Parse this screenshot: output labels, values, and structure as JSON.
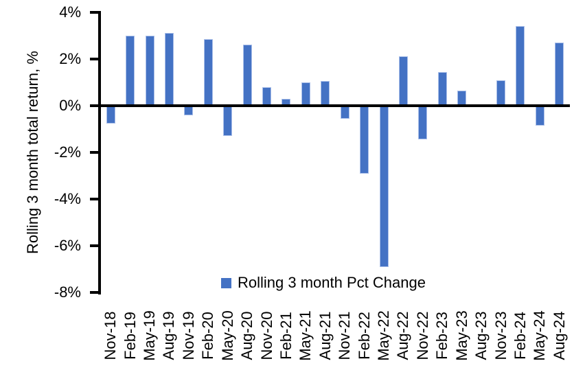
{
  "chart_data": {
    "type": "bar",
    "title": "",
    "xlabel": "",
    "ylabel": "Rolling 3 month total return, %",
    "categories": [
      "Nov-18",
      "Feb-19",
      "May-19",
      "Aug-19",
      "Nov-19",
      "Feb-20",
      "May-20",
      "Aug-20",
      "Nov-20",
      "Feb-21",
      "May-21",
      "Aug-21",
      "Nov-21",
      "Feb-22",
      "May-22",
      "Aug-22",
      "Nov-22",
      "Feb-23",
      "May-23",
      "Aug-23",
      "Nov-23",
      "Feb-24",
      "May-24",
      "Aug-24"
    ],
    "values": [
      -0.75,
      3.0,
      3.0,
      3.1,
      -0.4,
      2.85,
      -1.3,
      2.6,
      0.8,
      0.3,
      1.0,
      1.05,
      -0.55,
      -2.9,
      -6.9,
      2.1,
      -1.45,
      1.45,
      0.65,
      0.0,
      1.1,
      3.4,
      -0.85,
      2.7
    ],
    "ylim": [
      -8,
      4
    ],
    "ytick_values": [
      4,
      2,
      0,
      -2,
      -4,
      -6,
      -8
    ],
    "ytick_labels": [
      "4%",
      "2%",
      "0%",
      "-2%",
      "-4%",
      "-6%",
      "-8%"
    ],
    "grid": false,
    "legend": {
      "label": "Rolling 3 month Pct Change",
      "position": "bottom-center-inside"
    },
    "colors": {
      "bar": "#4472C4",
      "bar_border": "#aabfe9",
      "axis": "#000000",
      "text": "#000000",
      "background": "#ffffff"
    }
  }
}
